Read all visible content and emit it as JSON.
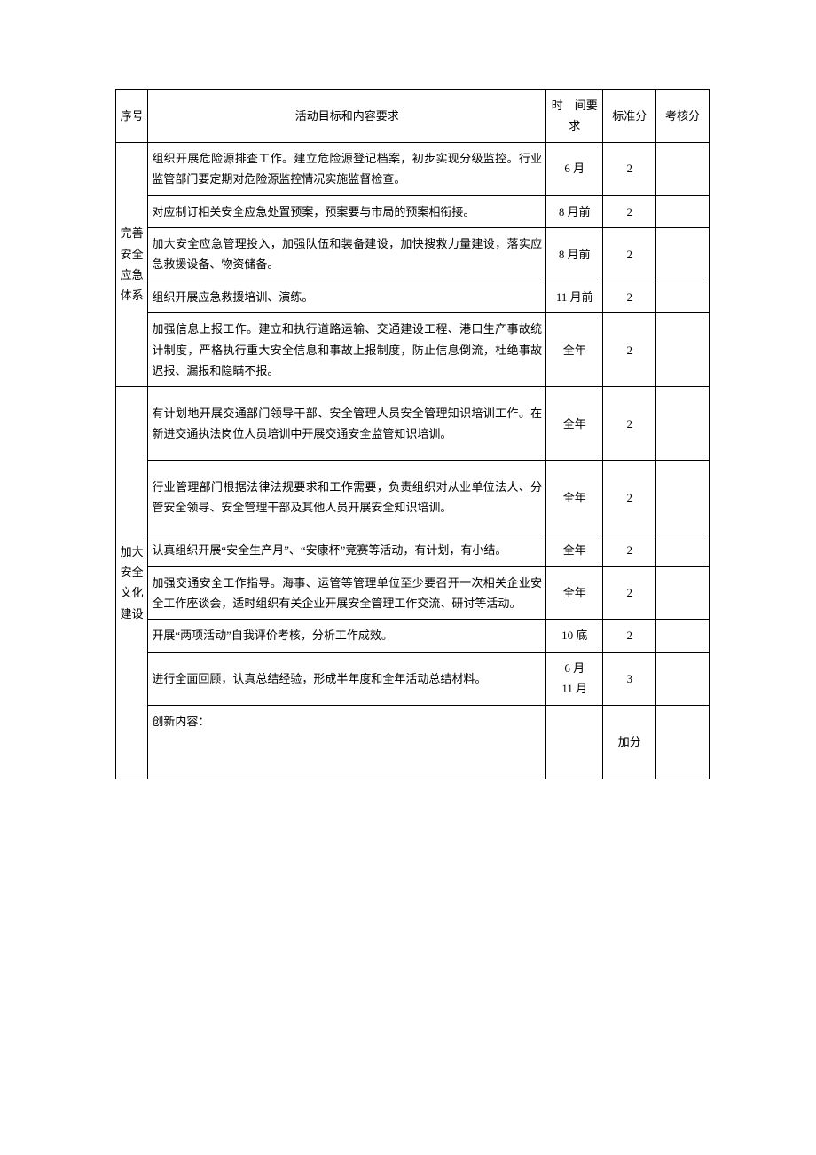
{
  "table": {
    "columns": {
      "seq": "序号",
      "content": "活动目标和内容要求",
      "time": "时　间要求",
      "score": "标准分",
      "assess": "考核分"
    },
    "sections": [
      {
        "label": "完善安全应急体系",
        "rows": [
          {
            "content": "组织开展危险源排查工作。建立危险源登记档案，初步实现分级监控。行业监管部门要定期对危险源监控情况实施监督检查。",
            "time": "6 月",
            "score": "2"
          },
          {
            "content": "对应制订相关安全应急处置预案，预案要与市局的预案相衔接。",
            "time": "8 月前",
            "score": "2"
          },
          {
            "content": "加大安全应急管理投入，加强队伍和装备建设，加快搜救力量建设，落实应急救援设备、物资储备。",
            "time": "8 月前",
            "score": "2"
          },
          {
            "content": "组织开展应急救援培训、演练。",
            "time": "11 月前",
            "score": "2"
          },
          {
            "content": "加强信息上报工作。建立和执行道路运输、交通建设工程、港口生产事故统计制度，严格执行重大安全信息和事故上报制度，防止信息倒流，杜绝事故迟报、漏报和隐瞒不报。",
            "time": "全年",
            "score": "2"
          }
        ]
      },
      {
        "label": "加大安全文化建设",
        "rows": [
          {
            "content": "有计划地开展交通部门领导干部、安全管理人员安全管理知识培训工作。在新进交通执法岗位人员培训中开展交通安全监管知识培训。",
            "time": "全年",
            "score": "2",
            "tall": true
          },
          {
            "content": "行业管理部门根据法律法规要求和工作需要，负责组织对从业单位法人、分管安全领导、安全管理干部及其他人员开展安全知识培训。",
            "time": "全年",
            "score": "2",
            "tall": true
          },
          {
            "content": "认真组织开展“安全生产月”、“安康杯”竞赛等活动，有计划，有小结。",
            "time": "全年",
            "score": "2"
          },
          {
            "content": "加强交通安全工作指导。海事、运管等管理单位至少要召开一次相关企业安全工作座谈会，适时组织有关企业开展安全管理工作交流、研讨等活动。",
            "time": "全年",
            "score": "2"
          },
          {
            "content": "开展“两项活动”自我评价考核，分析工作成效。",
            "time": "10 底",
            "score": "2"
          },
          {
            "content": "进行全面回顾，认真总结经验，形成半年度和全年活动总结材料。",
            "time": "6 月\n11 月",
            "score": "3"
          },
          {
            "content": "创新内容：",
            "time": "",
            "score": "加分",
            "tall": true
          }
        ]
      }
    ]
  }
}
